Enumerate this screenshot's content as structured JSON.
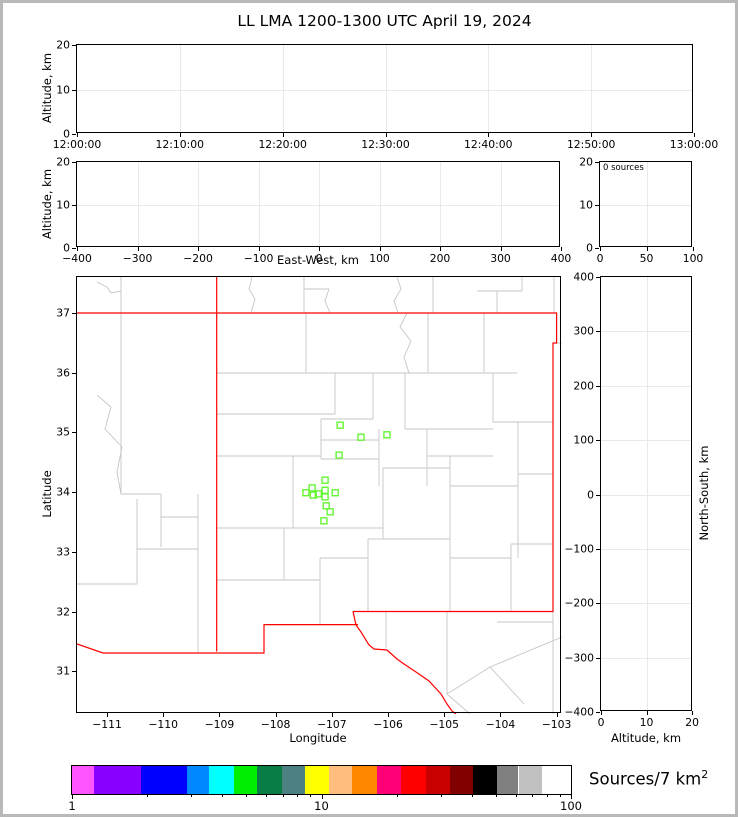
{
  "title": "LL LMA 1200-1300 UTC April 19, 2024",
  "colors": {
    "state_border": "#ff0000",
    "county_border": "#c6c6c6",
    "marker": "#66f633",
    "gridline": "#e9e9e9"
  },
  "chart_data": {
    "type": "scatter",
    "panels": {
      "time_altitude": {
        "type": "scatter",
        "ylabel": "Altitude, km",
        "yrange": [
          0,
          20
        ],
        "xrange_minutes": [
          0,
          60
        ],
        "grid": true,
        "points": [],
        "xticks": [
          {
            "v": 0,
            "label": "12:00:00"
          },
          {
            "v": 10,
            "label": "12:10:00"
          },
          {
            "v": 20,
            "label": "12:20:00"
          },
          {
            "v": 30,
            "label": "12:30:00"
          },
          {
            "v": 40,
            "label": "12:40:00"
          },
          {
            "v": 50,
            "label": "12:50:00"
          },
          {
            "v": 60,
            "label": "13:00:00"
          }
        ],
        "yticks": [
          {
            "v": 0,
            "label": "0"
          },
          {
            "v": 10,
            "label": "10"
          },
          {
            "v": 20,
            "label": "20"
          }
        ]
      },
      "eastwest_altitude": {
        "type": "scatter",
        "xlabel": "East-West, km",
        "ylabel": "Altitude, km",
        "xrange": [
          -400,
          400
        ],
        "yrange": [
          0,
          20
        ],
        "grid": true,
        "points": [],
        "xticks": [
          {
            "v": -400,
            "label": "−400"
          },
          {
            "v": -300,
            "label": "−300"
          },
          {
            "v": -200,
            "label": "−200"
          },
          {
            "v": -100,
            "label": "−100"
          },
          {
            "v": 0,
            "label": "0"
          },
          {
            "v": 100,
            "label": "100"
          },
          {
            "v": 200,
            "label": "200"
          },
          {
            "v": 300,
            "label": "300"
          },
          {
            "v": 400,
            "label": "400"
          }
        ],
        "yticks": [
          {
            "v": 0,
            "label": "0"
          },
          {
            "v": 10,
            "label": "10"
          },
          {
            "v": 20,
            "label": "20"
          }
        ]
      },
      "altitude_histogram": {
        "type": "line",
        "annotation": "0 sources",
        "xrange": [
          0,
          100
        ],
        "yrange": [
          0,
          20
        ],
        "grid": true,
        "points": [],
        "xticks": [
          {
            "v": 0,
            "label": "0"
          },
          {
            "v": 50,
            "label": "50"
          },
          {
            "v": 100,
            "label": "100"
          }
        ],
        "yticks": [
          {
            "v": 0,
            "label": "0"
          },
          {
            "v": 10,
            "label": "10"
          },
          {
            "v": 20,
            "label": "20"
          }
        ]
      },
      "map": {
        "type": "scatter",
        "xlabel": "Longitude",
        "ylabel": "Latitude",
        "xrange": [
          -111.53,
          -102.9
        ],
        "yrange": [
          30.28,
          37.6
        ],
        "grid": false,
        "marker": "open-square",
        "marker_color": "#66f633",
        "points": [
          [
            -106.85,
            35.12
          ],
          [
            -106.48,
            34.92
          ],
          [
            -106.02,
            34.96
          ],
          [
            -106.87,
            34.62
          ],
          [
            -107.12,
            34.2
          ],
          [
            -107.35,
            34.07
          ],
          [
            -107.46,
            33.99
          ],
          [
            -107.33,
            33.95
          ],
          [
            -107.24,
            33.97
          ],
          [
            -107.12,
            34.03
          ],
          [
            -107.12,
            33.92
          ],
          [
            -106.94,
            33.99
          ],
          [
            -107.1,
            33.77
          ],
          [
            -107.03,
            33.67
          ],
          [
            -107.14,
            33.52
          ]
        ],
        "xticks": [
          {
            "v": -111,
            "label": "−111"
          },
          {
            "v": -110,
            "label": "−110"
          },
          {
            "v": -109,
            "label": "−109"
          },
          {
            "v": -108,
            "label": "−108"
          },
          {
            "v": -107,
            "label": "−107"
          },
          {
            "v": -106,
            "label": "−106"
          },
          {
            "v": -105,
            "label": "−105"
          },
          {
            "v": -104,
            "label": "−104"
          },
          {
            "v": -103,
            "label": "−103"
          }
        ],
        "yticks": [
          {
            "v": 31,
            "label": "31"
          },
          {
            "v": 32,
            "label": "32"
          },
          {
            "v": 33,
            "label": "33"
          },
          {
            "v": 34,
            "label": "34"
          },
          {
            "v": 35,
            "label": "35"
          },
          {
            "v": 36,
            "label": "36"
          },
          {
            "v": 37,
            "label": "37"
          }
        ]
      },
      "northsouth_altitude": {
        "type": "scatter",
        "xlabel": "Altitude, km",
        "ylabel_right": "North-South, km",
        "xrange": [
          0,
          20
        ],
        "yrange": [
          -400,
          400
        ],
        "grid": true,
        "points": [],
        "xticks": [
          {
            "v": 0,
            "label": "0"
          },
          {
            "v": 10,
            "label": "10"
          },
          {
            "v": 20,
            "label": "20"
          }
        ],
        "yticks": [
          {
            "v": 400,
            "label": "400"
          },
          {
            "v": 300,
            "label": "300"
          },
          {
            "v": 200,
            "label": "200"
          },
          {
            "v": 100,
            "label": "100"
          },
          {
            "v": 0,
            "label": "0"
          },
          {
            "v": -100,
            "label": "−100"
          },
          {
            "v": -200,
            "label": "−200"
          },
          {
            "v": -300,
            "label": "−300"
          },
          {
            "v": -400,
            "label": "−400"
          }
        ]
      },
      "colorbar": {
        "label": "Sources/7 km",
        "label_sup": "2",
        "scale": "log",
        "range": [
          1,
          100
        ],
        "major_ticks": [
          {
            "v": 1,
            "label": "1"
          },
          {
            "v": 10,
            "label": "10"
          },
          {
            "v": 100,
            "label": "100"
          }
        ],
        "minor_ticks": [
          2,
          3,
          4,
          5,
          6,
          7,
          8,
          9,
          20,
          30,
          40,
          50,
          60,
          70,
          80,
          90
        ],
        "segments": [
          {
            "from": 1.0,
            "to": 1.23,
            "color": "#ff55ff"
          },
          {
            "from": 1.23,
            "to": 1.89,
            "color": "#8800ff"
          },
          {
            "from": 1.89,
            "to": 2.89,
            "color": "#0000ff"
          },
          {
            "from": 2.89,
            "to": 3.54,
            "color": "#0088ff"
          },
          {
            "from": 3.54,
            "to": 4.46,
            "color": "#00ffff"
          },
          {
            "from": 4.46,
            "to": 5.51,
            "color": "#00ee00"
          },
          {
            "from": 5.51,
            "to": 6.95,
            "color": "#0a7d46"
          },
          {
            "from": 6.95,
            "to": 8.6,
            "color": "#4d8080"
          },
          {
            "from": 8.6,
            "to": 10.7,
            "color": "#ffff00"
          },
          {
            "from": 10.7,
            "to": 13.3,
            "color": "#ffbe7d"
          },
          {
            "from": 13.3,
            "to": 16.7,
            "color": "#ff8800"
          },
          {
            "from": 16.7,
            "to": 20.8,
            "color": "#ff0077"
          },
          {
            "from": 20.8,
            "to": 26.3,
            "color": "#ff0000"
          },
          {
            "from": 26.3,
            "to": 32.7,
            "color": "#c80000"
          },
          {
            "from": 32.7,
            "to": 40.5,
            "color": "#800000"
          },
          {
            "from": 40.5,
            "to": 50.6,
            "color": "#000000"
          },
          {
            "from": 50.6,
            "to": 61.6,
            "color": "#808080"
          },
          {
            "from": 61.6,
            "to": 76.5,
            "color": "#c0c0c0"
          },
          {
            "from": 76.5,
            "to": 100.0,
            "color": "#ffffff"
          }
        ]
      }
    }
  }
}
